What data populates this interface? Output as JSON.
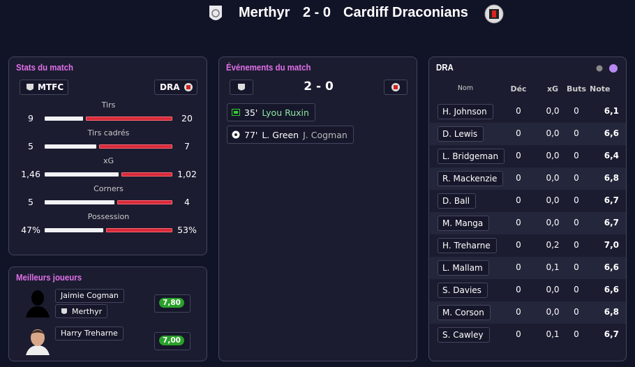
{
  "header": {
    "home": "Merthyr",
    "score": "2 - 0",
    "away": "Cardiff Draconians"
  },
  "stats": {
    "title": "Stats du match",
    "home_abbr": "MTFC",
    "away_abbr": "DRA",
    "rows": [
      {
        "label": "Tirs",
        "home": 9,
        "away": 20
      },
      {
        "label": "Tirs cadrés",
        "home": 5,
        "away": 7
      },
      {
        "label": "xG",
        "home": {
          "value": 1.46,
          "label": "1,46"
        },
        "away": {
          "value": 1.02,
          "label": "1,02"
        }
      },
      {
        "label": "Corners",
        "home": 5,
        "away": 4
      },
      {
        "label": "Possession",
        "home": {
          "value": 47,
          "label": "47%"
        },
        "away": {
          "value": 53,
          "label": "53%"
        }
      }
    ]
  },
  "events": {
    "title": "Événements du match",
    "score": "2 - 0",
    "items": [
      {
        "minute": "35'",
        "player": "Lyou Ruxin"
      },
      {
        "minute": "77'",
        "player": "L. Green",
        "assist": "J. Cogman"
      }
    ]
  },
  "best_players": {
    "title": "Meilleurs joueurs",
    "players": [
      {
        "name": "Jaimie Cogman",
        "club": "Merthyr",
        "rating": "7,80"
      },
      {
        "name": "Harry Treharne",
        "rating": "7,00"
      }
    ]
  },
  "table": {
    "title": "DRA",
    "headers": [
      "Nom",
      "Déc",
      "xG",
      "Buts",
      "Note"
    ],
    "rows": [
      [
        "H. Johnson",
        "0",
        "0,0",
        "0",
        "6,1"
      ],
      [
        "D. Lewis",
        "0",
        "0,0",
        "0",
        "6,6"
      ],
      [
        "L. Bridgeman",
        "0",
        "0,0",
        "0",
        "6,4"
      ],
      [
        "R. Mackenzie",
        "0",
        "0,0",
        "0",
        "6,8"
      ],
      [
        "D. Ball",
        "0",
        "0,0",
        "0",
        "6,7"
      ],
      [
        "M. Manga",
        "0",
        "0,0",
        "0",
        "6,7"
      ],
      [
        "H. Treharne",
        "0",
        "0,2",
        "0",
        "7,0"
      ],
      [
        "L. Mallam",
        "0",
        "0,1",
        "0",
        "6,6"
      ],
      [
        "S. Davies",
        "0",
        "0,0",
        "0",
        "6,6"
      ],
      [
        "M. Corson",
        "0",
        "0,0",
        "0",
        "6,8"
      ],
      [
        "S. Cawley",
        "0",
        "0,1",
        "0",
        "6,7"
      ]
    ]
  }
}
